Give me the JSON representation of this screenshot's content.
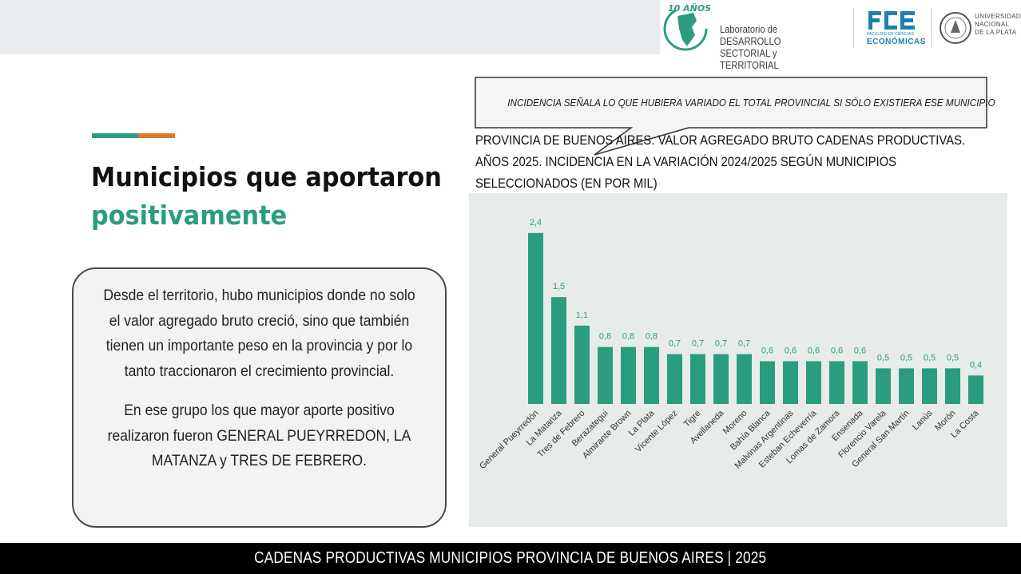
{
  "header": {
    "ldst_badge": "10 AÑOS",
    "ldst_line1": "Laboratorio de DESARROLLO",
    "ldst_line2": "SECTORIAL y TERRITORIAL",
    "fce_sub1": "FACULTAD DE CIENCIAS",
    "fce_sub2": "ECONÓMICAS",
    "unlp_line1": "UNIVERSIDAD",
    "unlp_line2": "NACIONAL",
    "unlp_line3": "DE LA PLATA"
  },
  "heading": {
    "line1": "Municipios que aportaron",
    "line2": "positivamente"
  },
  "textbox": {
    "paragraph1": "Desde el territorio, hubo municipios donde no solo el valor agregado bruto creció, sino que también tienen un importante peso en la provincia y por lo tanto traccionaron el crecimiento provincial.",
    "paragraph2": "En ese grupo los que mayor aporte positivo realizaron fueron GENERAL PUEYRREDON, LA MATANZA y TRES DE FEBRERO."
  },
  "callout": {
    "text": "INCIDENCIA SEÑALA LO QUE HUBIERA VARIADO EL TOTAL PROVINCIAL SI SÓLO EXISTIERA ESE MUNICIPIO"
  },
  "chart_title": {
    "line1": "PROVINCIA DE BUENOS AIRES.  VALOR AGREGADO BRUTO CADENAS PRODUCTIVAS.",
    "line2": "AÑOS 2025. INCIDENCIA EN LA  VARIACIÓN 2024/2025 SEGÚN MUNICIPIOS",
    "line3": "SELECCIONADOS (EN POR MIL)"
  },
  "chart_data": {
    "type": "bar",
    "title": "PROVINCIA DE BUENOS AIRES.  VALOR AGREGADO BRUTO CADENAS PRODUCTIVAS. AÑOS 2025. INCIDENCIA EN LA  VARIACIÓN 2024/2025 SEGÚN MUNICIPIOS SELECCIONADOS (EN POR MIL)",
    "xlabel": "",
    "ylabel": "",
    "categories": [
      "General Pueyrredón",
      "La Matanza",
      "Tres de Febrero",
      "Berazategui",
      "Almirante Brown",
      "La Plata",
      "Vicente López",
      "Tigre",
      "Avellaneda",
      "Moreno",
      "Bahía Blanca",
      "Malvinas Argentinas",
      "Esteban Echeverría",
      "Lomas de Zamora",
      "Ensenada",
      "Florencio Varela",
      "General San Martín",
      "Lanús",
      "Morón",
      "La Costa"
    ],
    "values": [
      2.4,
      1.5,
      1.1,
      0.8,
      0.8,
      0.8,
      0.7,
      0.7,
      0.7,
      0.7,
      0.6,
      0.6,
      0.6,
      0.6,
      0.6,
      0.5,
      0.5,
      0.5,
      0.5,
      0.4
    ],
    "value_labels": [
      "2,4",
      "1,5",
      "1,1",
      "0,8",
      "0,8",
      "0,8",
      "0,7",
      "0,7",
      "0,7",
      "0,7",
      "0,6",
      "0,6",
      "0,6",
      "0,6",
      "0,6",
      "0,5",
      "0,5",
      "0,5",
      "0,5",
      "0,4"
    ],
    "ylim": [
      0,
      2.6
    ],
    "grid": false,
    "legend": "none",
    "bar_color": "#2a9d7f"
  },
  "footer": {
    "text": "CADENAS PRODUCTIVAS MUNICIPIOS PROVINCIA DE BUENOS AIRES | 2025"
  },
  "colors": {
    "teal": "#2a9d7f",
    "orange": "#d9782f",
    "footer_bg": "#000000",
    "panel_bg": "#e8ece9"
  }
}
